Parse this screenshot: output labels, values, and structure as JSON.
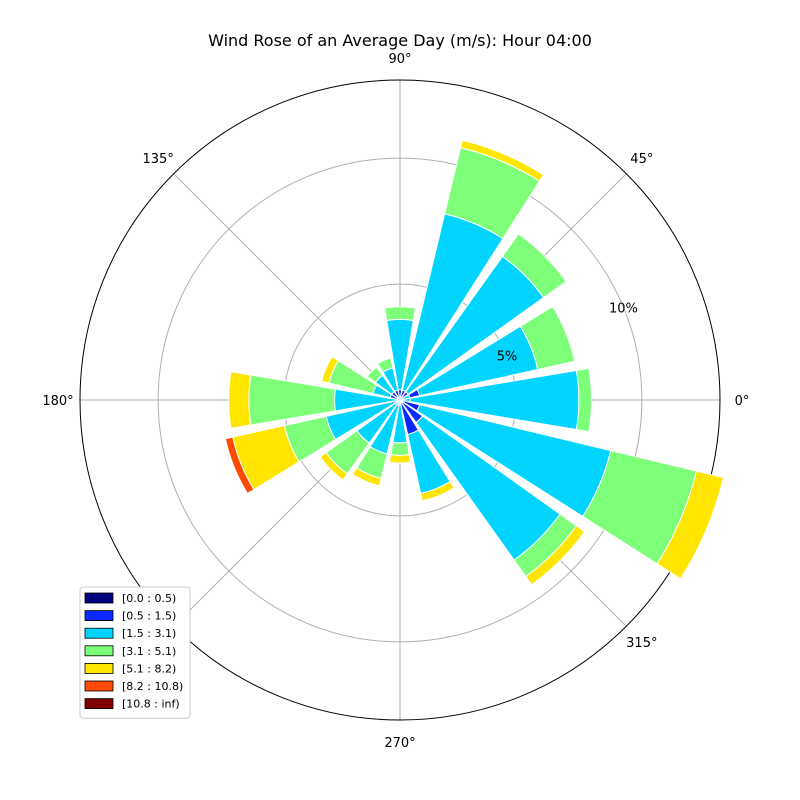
{
  "chart_data": {
    "type": "wind-rose",
    "title": "Wind Rose of an Average Day (m/s): Hour 04:00",
    "angle_ticks": [
      {
        "deg": 0,
        "label": "0°"
      },
      {
        "deg": 45,
        "label": "45°"
      },
      {
        "deg": 90,
        "label": "90°"
      },
      {
        "deg": 135,
        "label": "135°"
      },
      {
        "deg": 180,
        "label": "180°"
      },
      {
        "deg": 225,
        "label": ""
      },
      {
        "deg": 270,
        "label": "270°"
      },
      {
        "deg": 315,
        "label": "315°"
      }
    ],
    "radial_ticks": [
      {
        "value": 5,
        "label": "5%"
      },
      {
        "value": 10,
        "label": "10%"
      }
    ],
    "r_max": 13.1,
    "r_min": 0.4,
    "bin_width_deg": 19,
    "legend_location": "lower-left",
    "bins": [
      {
        "label": "[0.0 : 0.5)",
        "color": "#00007f"
      },
      {
        "label": "[0.5 : 1.5)",
        "color": "#0a28ff"
      },
      {
        "label": "[1.5 : 3.1)",
        "color": "#00d4ff"
      },
      {
        "label": "[3.1 : 5.1)",
        "color": "#7dff7a"
      },
      {
        "label": "[5.1 : 8.2)",
        "color": "#ffe500"
      },
      {
        "label": "[8.2 : 10.8)",
        "color": "#ff4a00"
      },
      {
        "label": "[10.8 : inf)",
        "color": "#7f0000"
      }
    ],
    "directions": [
      {
        "angle": 0,
        "cumulative": [
          0.0,
          0.4,
          7.5,
          8.0,
          8.0,
          8.0,
          8.0
        ]
      },
      {
        "angle": 22,
        "cumulative": [
          0.0,
          1.2,
          6.0,
          7.5,
          7.5,
          7.5,
          7.5
        ]
      },
      {
        "angle": 45,
        "cumulative": [
          0.0,
          0.2,
          7.4,
          8.5,
          8.5,
          8.5,
          8.5
        ]
      },
      {
        "angle": 67,
        "cumulative": [
          0.0,
          0.2,
          8.0,
          10.7,
          11.0,
          11.0,
          11.0
        ]
      },
      {
        "angle": 90,
        "cumulative": [
          0.0,
          0.3,
          3.6,
          4.1,
          4.1,
          4.1,
          4.1
        ]
      },
      {
        "angle": 112,
        "cumulative": [
          0.0,
          0.4,
          1.7,
          2.1,
          2.1,
          2.1,
          2.1
        ]
      },
      {
        "angle": 135,
        "cumulative": [
          0.0,
          0.0,
          1.6,
          2.0,
          2.0,
          2.0,
          2.0
        ]
      },
      {
        "angle": 157,
        "cumulative": [
          0.0,
          0.0,
          1.5,
          3.3,
          3.6,
          3.6,
          3.6
        ]
      },
      {
        "angle": 180,
        "cumulative": [
          0.0,
          0.0,
          3.0,
          6.4,
          7.2,
          7.2,
          7.2
        ]
      },
      {
        "angle": 202,
        "cumulative": [
          0.0,
          0.0,
          3.4,
          5.1,
          7.2,
          7.5,
          7.5
        ]
      },
      {
        "angle": 225,
        "cumulative": [
          0.0,
          0.3,
          2.5,
          4.0,
          4.3,
          4.3,
          4.3
        ]
      },
      {
        "angle": 247,
        "cumulative": [
          0.0,
          0.6,
          2.6,
          3.6,
          3.9,
          3.9,
          3.9
        ]
      },
      {
        "angle": 270,
        "cumulative": [
          0.0,
          0.3,
          2.1,
          2.6,
          2.9,
          2.9,
          2.9
        ]
      },
      {
        "angle": 292,
        "cumulative": [
          0.0,
          1.8,
          4.2,
          4.2,
          4.5,
          4.5,
          4.5
        ]
      },
      {
        "angle": 315,
        "cumulative": [
          0.0,
          1.5,
          8.2,
          9.0,
          9.4,
          9.4,
          9.4
        ]
      },
      {
        "angle": 337,
        "cumulative": [
          0.0,
          1.2,
          9.0,
          12.5,
          13.6,
          13.6,
          13.6
        ]
      }
    ]
  }
}
